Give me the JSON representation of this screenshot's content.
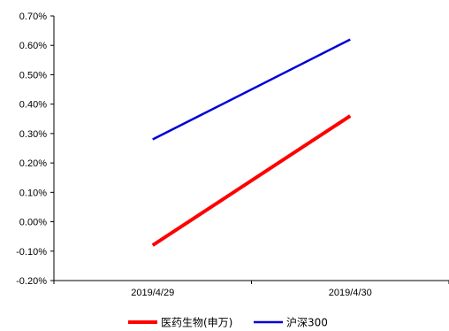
{
  "chart_data": {
    "type": "line",
    "x": [
      "2019/4/29",
      "2019/4/30"
    ],
    "series": [
      {
        "name": "医药生物(申万)",
        "values": [
          -0.08,
          0.36
        ],
        "color": "#ff0000"
      },
      {
        "name": "沪深300",
        "values": [
          0.28,
          0.62
        ],
        "color": "#0000d8"
      }
    ],
    "y_unit": "%",
    "ylim": [
      -0.2,
      0.7
    ],
    "y_ticks": [
      -0.2,
      -0.1,
      0.0,
      0.1,
      0.2,
      0.3,
      0.4,
      0.5,
      0.6,
      0.7
    ],
    "y_tick_labels": [
      "-0.20%",
      "-0.10%",
      "0.00%",
      "0.10%",
      "0.20%",
      "0.30%",
      "0.40%",
      "0.50%",
      "0.60%",
      "0.70%"
    ],
    "grid": false,
    "legend_position": "bottom"
  }
}
